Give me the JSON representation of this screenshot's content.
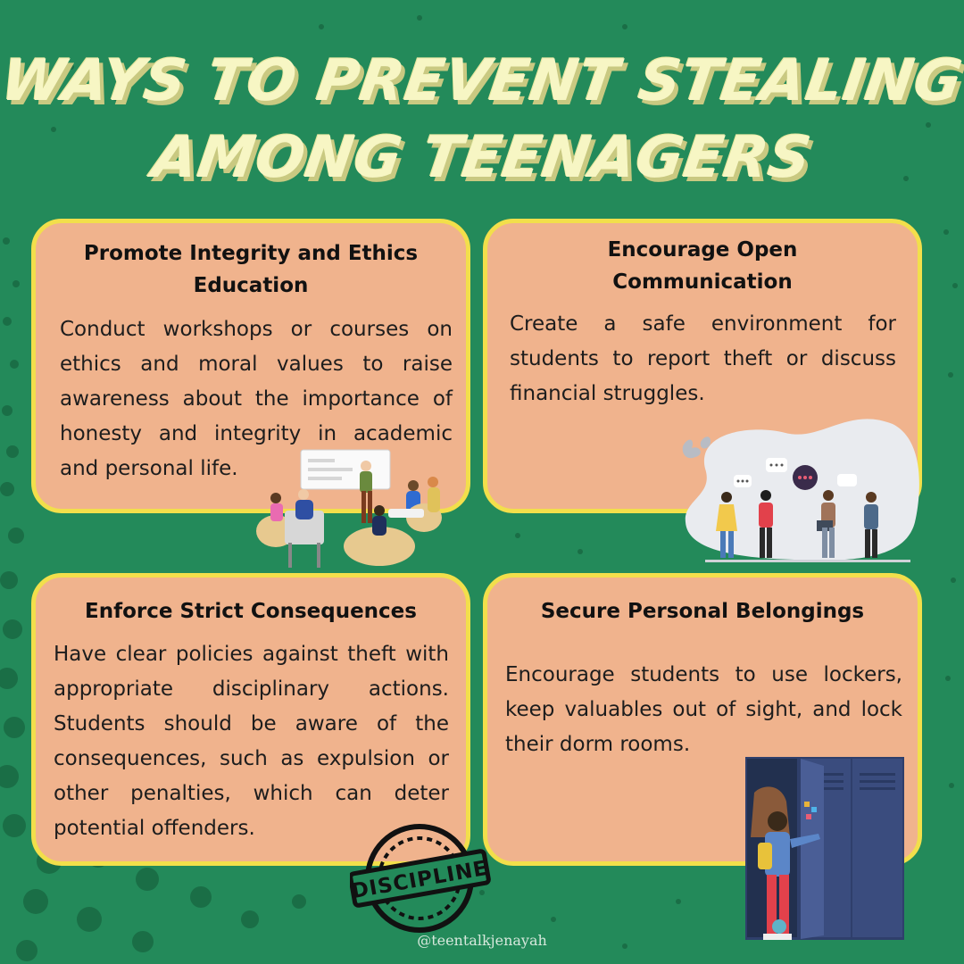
{
  "title": {
    "line1": "Ways to prevent stealing",
    "line2": "among teenagers"
  },
  "cards": [
    {
      "title": "Promote Integrity and Ethics Education",
      "body": "Conduct workshops or courses on ethics and moral values to raise awareness about the importance of honesty and integrity in academic and personal life."
    },
    {
      "title": "Encourage Open Communication",
      "body": "Create a safe environment for students to report theft or discuss financial struggles."
    },
    {
      "title": "Enforce Strict Consequences",
      "body": "Have clear policies against theft with appropriate disciplinary actions. Students should be aware of the consequences, such as expulsion or other penalties, which can deter potential offenders."
    },
    {
      "title": "Secure Personal Belongings",
      "body": "Encourage students to use lockers, keep valuables out of sight, and lock their dorm rooms."
    }
  ],
  "stamp": {
    "label": "DISCIPLINE"
  },
  "credit": "@teentalkjenayah",
  "colors": {
    "background": "#238a5a",
    "card_fill": "#f0b38d",
    "card_border": "#f2df4b",
    "title_text": "#f7f6c4"
  },
  "icons": [
    "workshop-illustration",
    "communication-illustration",
    "discipline-stamp-icon",
    "locker-student-illustration"
  ]
}
